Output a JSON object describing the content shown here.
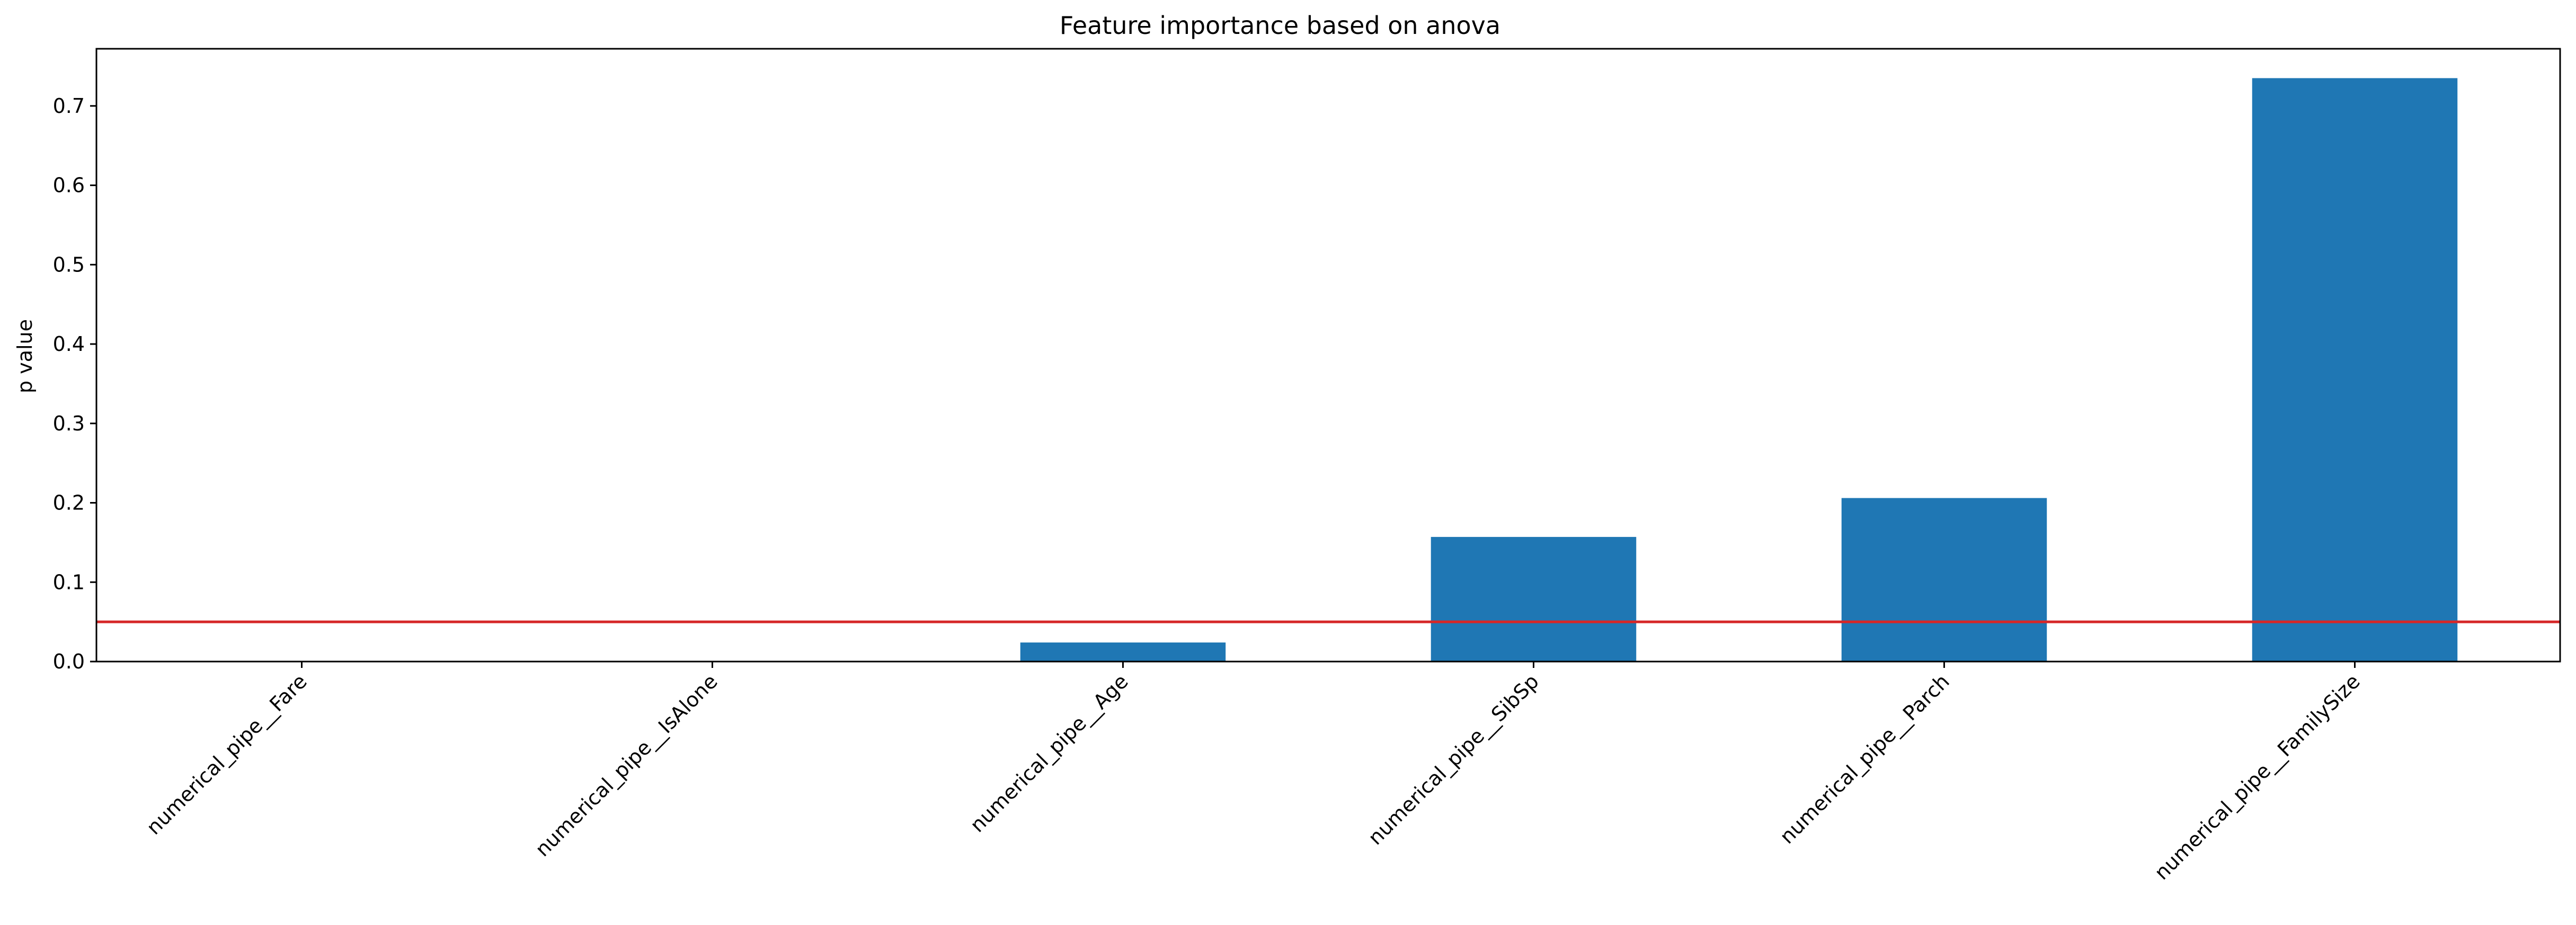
{
  "chart_data": {
    "type": "bar",
    "title": "Feature importance based on anova",
    "xlabel": "",
    "ylabel": "p value",
    "categories": [
      "numerical_pipe__Fare",
      "numerical_pipe__IsAlone",
      "numerical_pipe__Age",
      "numerical_pipe__SibSp",
      "numerical_pipe__Parch",
      "numerical_pipe__FamilySize"
    ],
    "values": [
      0.0,
      0.0,
      0.024,
      0.157,
      0.206,
      0.735
    ],
    "ylim": [
      0.0,
      0.772
    ],
    "yticks": [
      0.0,
      0.1,
      0.2,
      0.3,
      0.4,
      0.5,
      0.6,
      0.7
    ],
    "ytick_labels": [
      "0.0",
      "0.1",
      "0.2",
      "0.3",
      "0.4",
      "0.5",
      "0.6",
      "0.7"
    ],
    "threshold": 0.05,
    "grid": false,
    "colors": {
      "bar": "#1f77b4",
      "threshold": "#d62728",
      "axis": "#000000"
    }
  }
}
